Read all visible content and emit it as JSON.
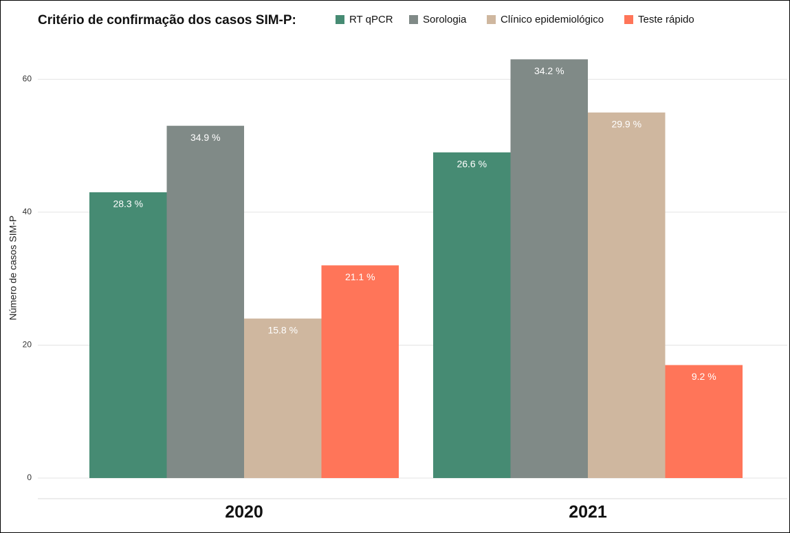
{
  "chart_data": {
    "type": "bar",
    "title": "Critério de confirmação dos casos SIM-P:",
    "y_label": "Número de casos SIM-P",
    "categories": [
      "2020",
      "2021"
    ],
    "series": [
      {
        "name": "RT qPCR",
        "color": "#468b73",
        "values": [
          43,
          49
        ],
        "percent_labels": [
          "28.3 %",
          "26.6 %"
        ]
      },
      {
        "name": "Sorologia",
        "color": "#808a87",
        "values": [
          53,
          63
        ],
        "percent_labels": [
          "34.9 %",
          "34.2 %"
        ]
      },
      {
        "name": "Clínico epidemiológico",
        "color": "#cfb79f",
        "values": [
          24,
          55
        ],
        "percent_labels": [
          "15.8 %",
          "29.9 %"
        ]
      },
      {
        "name": "Teste rápido",
        "color": "#ff7559",
        "values": [
          32,
          17
        ],
        "percent_labels": [
          "21.1 %",
          "9.2 %"
        ]
      }
    ],
    "ylim": [
      0,
      65
    ],
    "yticks": [
      0,
      20,
      40,
      60
    ],
    "grid": true
  }
}
